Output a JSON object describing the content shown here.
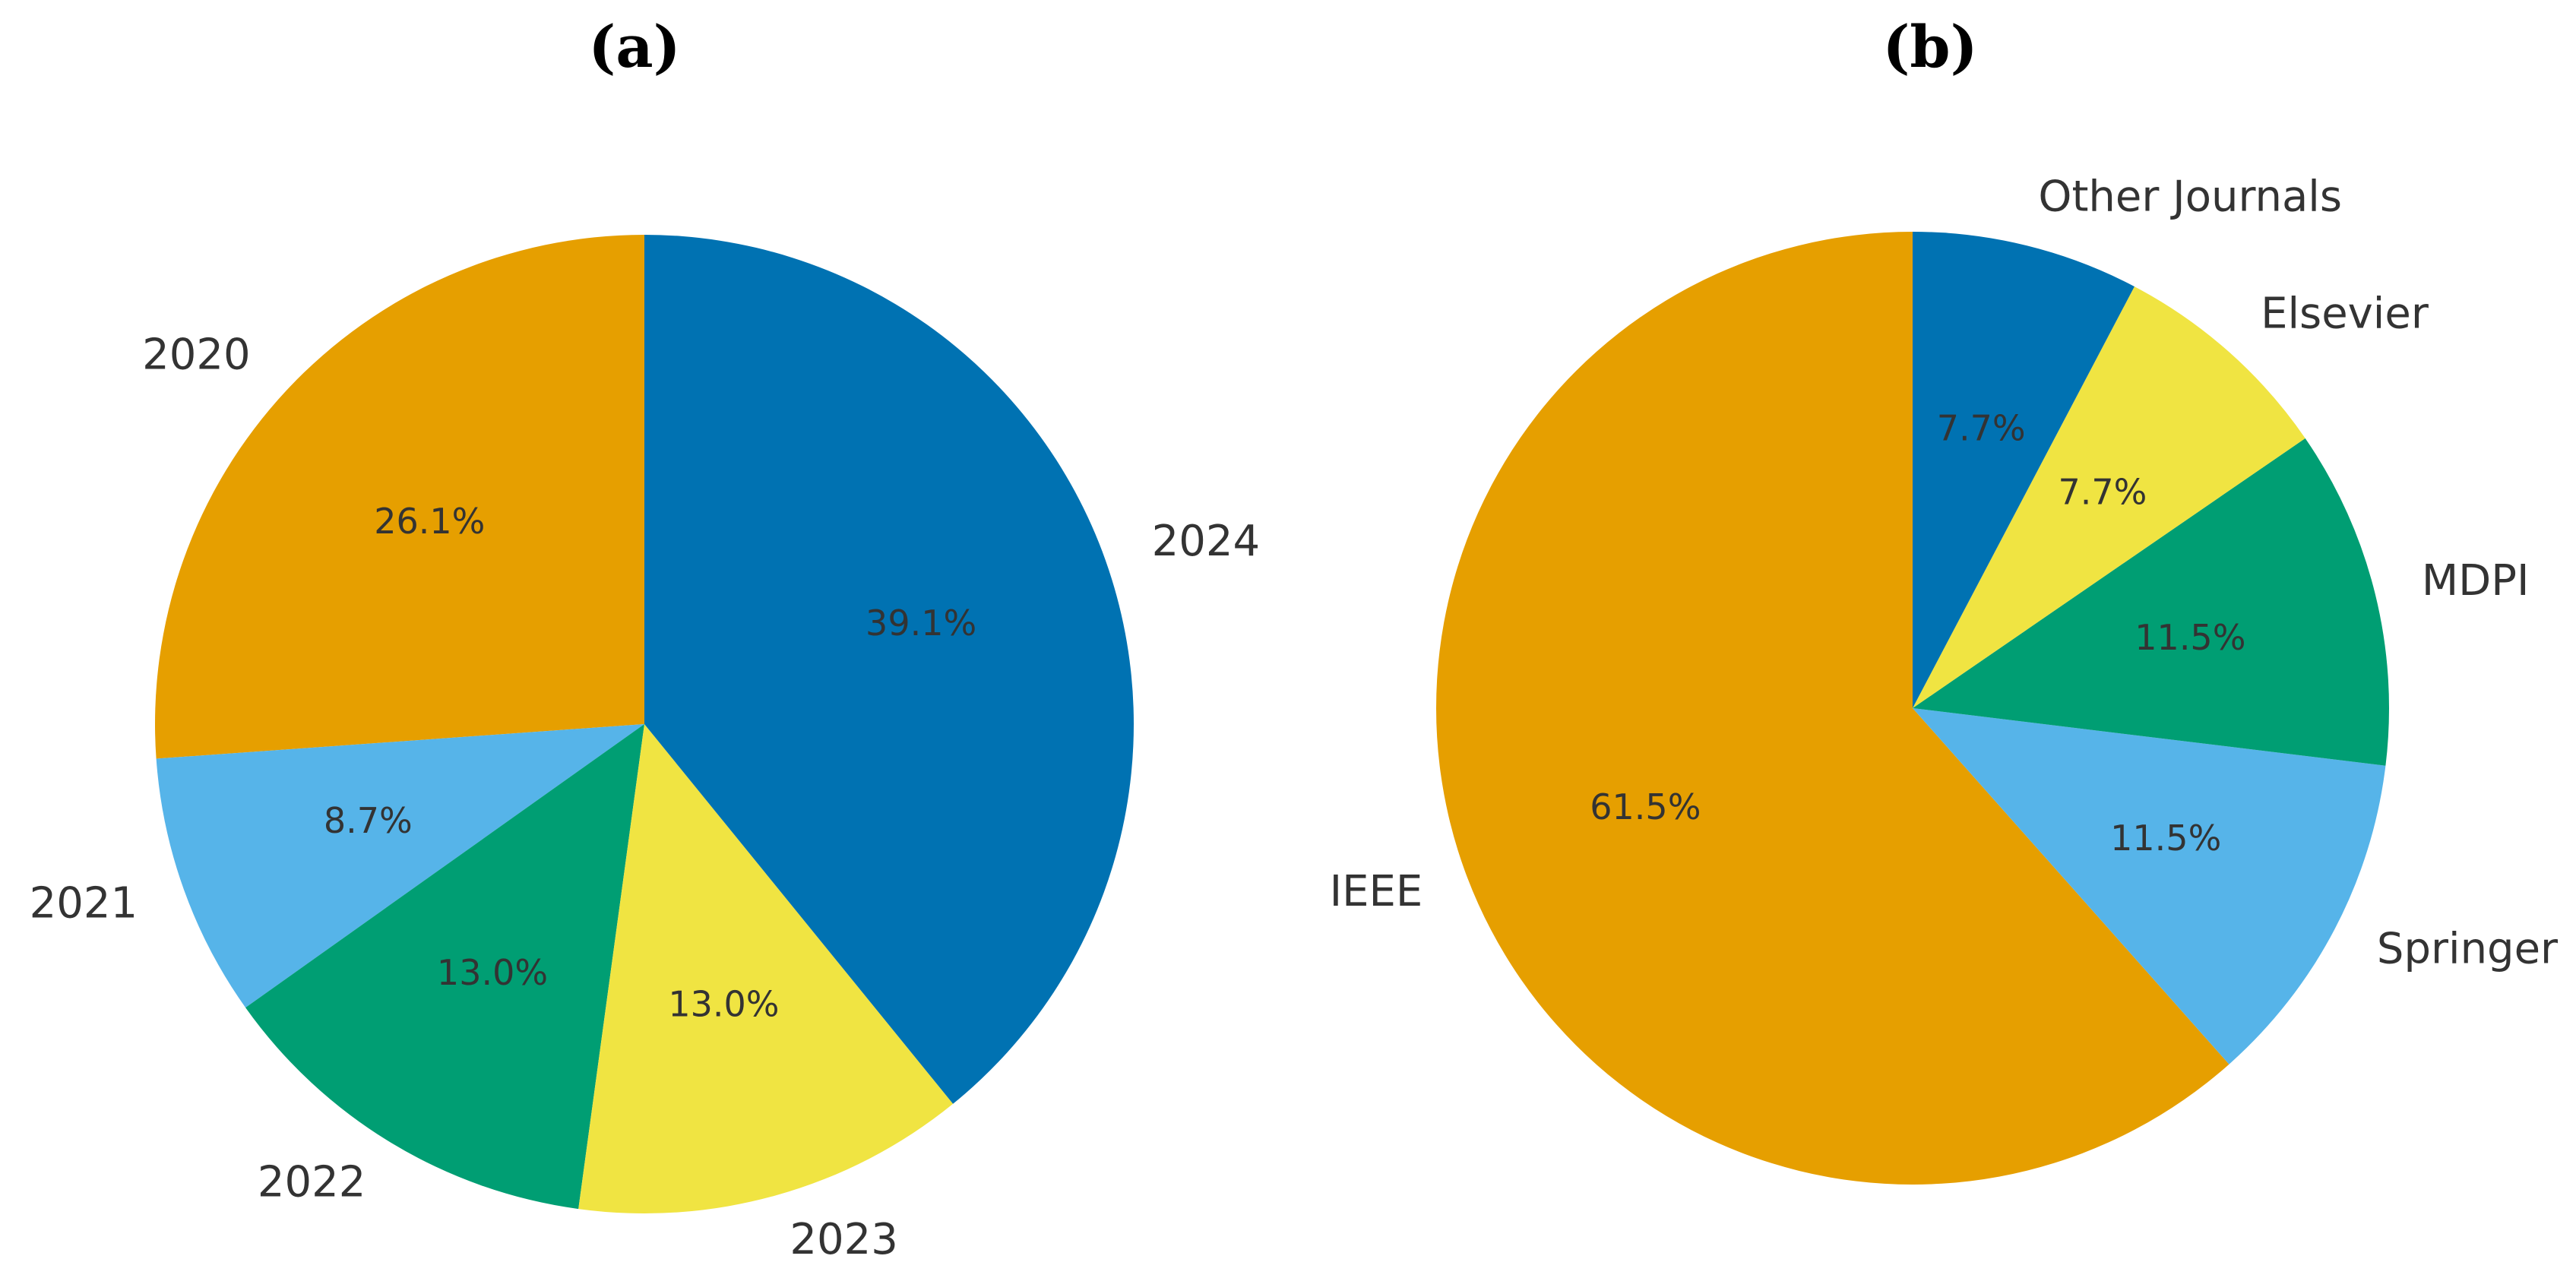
{
  "chart_data": [
    {
      "type": "pie",
      "title": "(a)",
      "categories": [
        "2020",
        "2021",
        "2022",
        "2023",
        "2024"
      ],
      "values": [
        26.1,
        8.7,
        13.0,
        13.0,
        39.1
      ],
      "value_labels": [
        "26.1%",
        "8.7%",
        "13.0%",
        "13.0%",
        "39.1%"
      ],
      "colors": [
        "#e69f00",
        "#56b4e9",
        "#009e73",
        "#f0e442",
        "#0072b2"
      ]
    },
    {
      "type": "pie",
      "title": "(b)",
      "categories": [
        "IEEE",
        "Springer",
        "MDPI",
        "Elsevier",
        "Other Journals"
      ],
      "values": [
        61.5,
        11.5,
        11.5,
        7.7,
        7.7
      ],
      "value_labels": [
        "61.5%",
        "11.5%",
        "11.5%",
        "7.7%",
        "7.7%"
      ],
      "colors": [
        "#e69f00",
        "#56b4e9",
        "#009e73",
        "#f0e442",
        "#0072b2"
      ]
    }
  ]
}
